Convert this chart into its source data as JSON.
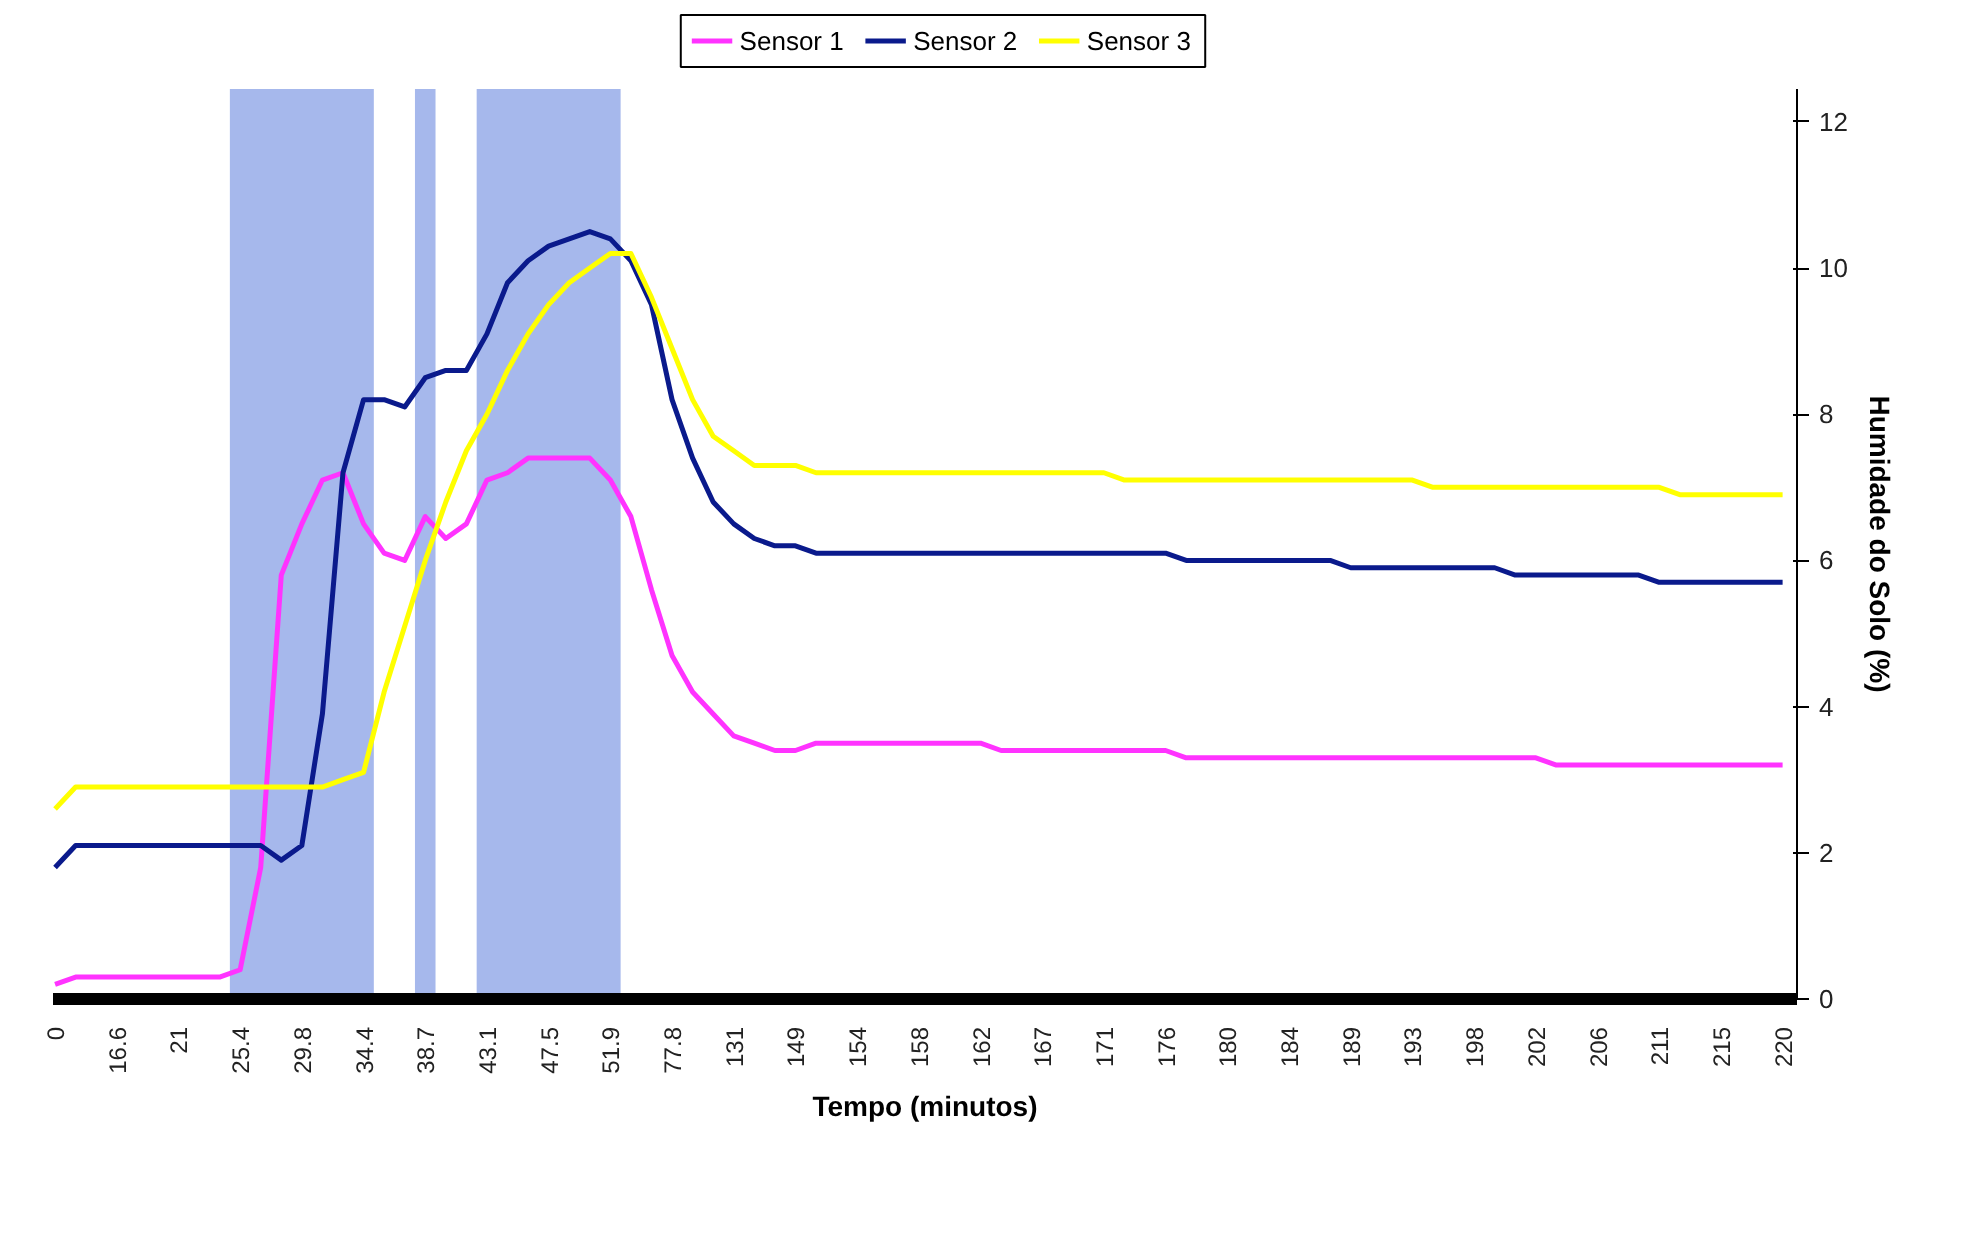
{
  "chart_data": {
    "type": "line",
    "xlabel": "Tempo (minutos)",
    "ylabel": "Humidade do Solo (%)",
    "categories": [
      "0",
      null,
      null,
      "16.6",
      null,
      null,
      "21",
      null,
      null,
      "25.4",
      null,
      null,
      "29.8",
      null,
      null,
      "34.4",
      null,
      null,
      "38.7",
      null,
      null,
      "43.1",
      null,
      null,
      "47.5",
      null,
      null,
      "51.9",
      null,
      null,
      "77.8",
      null,
      null,
      "131",
      null,
      null,
      "149",
      null,
      null,
      "154",
      null,
      null,
      "158",
      null,
      null,
      "162",
      null,
      null,
      "167",
      null,
      null,
      "171",
      null,
      null,
      "176",
      null,
      null,
      "180",
      null,
      null,
      "184",
      null,
      null,
      "189",
      null,
      null,
      "193",
      null,
      null,
      "198",
      null,
      null,
      "202",
      null,
      null,
      "206",
      null,
      null,
      "211",
      null,
      null,
      "215",
      null,
      null,
      "220"
    ],
    "ylim": [
      0,
      12.45
    ],
    "yticks": [
      0,
      2,
      4,
      6,
      8,
      10,
      12
    ],
    "bands": [
      {
        "axis": "x",
        "from": "25.4",
        "to": "34.4",
        "color": "#a6b8ec"
      },
      {
        "axis": "x",
        "from": "38.7",
        "to": "38.7",
        "color": "#a6b8ec"
      },
      {
        "axis": "x",
        "from": "43.1",
        "to": "51.9",
        "color": "#a6b8ec"
      }
    ],
    "grid": false,
    "legend": "top",
    "line_style": "solid",
    "series": [
      {
        "name": "Sensor 1",
        "color": "#ff33ff",
        "values": [
          0.2,
          0.3,
          0.3,
          0.3,
          0.3,
          0.3,
          0.3,
          0.3,
          0.3,
          0.4,
          1.8,
          5.8,
          6.5,
          7.1,
          7.2,
          6.5,
          6.1,
          6.0,
          6.6,
          6.3,
          6.5,
          7.1,
          7.2,
          7.4,
          7.4,
          7.4,
          7.4,
          7.1,
          6.6,
          5.6,
          4.7,
          4.2,
          3.9,
          3.6,
          3.5,
          3.4,
          3.4,
          3.5,
          3.5,
          3.5,
          3.5,
          3.5,
          3.5,
          3.5,
          3.5,
          3.5,
          3.4,
          3.4,
          3.4,
          3.4,
          3.4,
          3.4,
          3.4,
          3.4,
          3.4,
          3.3,
          3.3,
          3.3,
          3.3,
          3.3,
          3.3,
          3.3,
          3.3,
          3.3,
          3.3,
          3.3,
          3.3,
          3.3,
          3.3,
          3.3,
          3.3,
          3.3,
          3.3,
          3.2,
          3.2,
          3.2,
          3.2,
          3.2,
          3.2,
          3.2,
          3.2,
          3.2,
          3.2,
          3.2,
          3.2
        ]
      },
      {
        "name": "Sensor 2",
        "color": "#0a1a8c",
        "values": [
          1.8,
          2.1,
          2.1,
          2.1,
          2.1,
          2.1,
          2.1,
          2.1,
          2.1,
          2.1,
          2.1,
          1.9,
          2.1,
          3.9,
          7.2,
          8.2,
          8.2,
          8.1,
          8.5,
          8.6,
          8.6,
          9.1,
          9.8,
          10.1,
          10.3,
          10.4,
          10.5,
          10.4,
          10.1,
          9.5,
          8.2,
          7.4,
          6.8,
          6.5,
          6.3,
          6.2,
          6.2,
          6.1,
          6.1,
          6.1,
          6.1,
          6.1,
          6.1,
          6.1,
          6.1,
          6.1,
          6.1,
          6.1,
          6.1,
          6.1,
          6.1,
          6.1,
          6.1,
          6.1,
          6.1,
          6.0,
          6.0,
          6.0,
          6.0,
          6.0,
          6.0,
          6.0,
          6.0,
          5.9,
          5.9,
          5.9,
          5.9,
          5.9,
          5.9,
          5.9,
          5.9,
          5.8,
          5.8,
          5.8,
          5.8,
          5.8,
          5.8,
          5.8,
          5.7,
          5.7,
          5.7,
          5.7,
          5.7,
          5.7,
          5.7
        ]
      },
      {
        "name": "Sensor 3",
        "color": "#ffff00",
        "values": [
          2.6,
          2.9,
          2.9,
          2.9,
          2.9,
          2.9,
          2.9,
          2.9,
          2.9,
          2.9,
          2.9,
          2.9,
          2.9,
          2.9,
          3.0,
          3.1,
          4.2,
          5.1,
          6.0,
          6.8,
          7.5,
          8.0,
          8.6,
          9.1,
          9.5,
          9.8,
          10.0,
          10.2,
          10.2,
          9.6,
          8.9,
          8.2,
          7.7,
          7.5,
          7.3,
          7.3,
          7.3,
          7.2,
          7.2,
          7.2,
          7.2,
          7.2,
          7.2,
          7.2,
          7.2,
          7.2,
          7.2,
          7.2,
          7.2,
          7.2,
          7.2,
          7.2,
          7.1,
          7.1,
          7.1,
          7.1,
          7.1,
          7.1,
          7.1,
          7.1,
          7.1,
          7.1,
          7.1,
          7.1,
          7.1,
          7.1,
          7.1,
          7.0,
          7.0,
          7.0,
          7.0,
          7.0,
          7.0,
          7.0,
          7.0,
          7.0,
          7.0,
          7.0,
          7.0,
          6.9,
          6.9,
          6.9,
          6.9,
          6.9,
          6.9
        ]
      }
    ]
  }
}
